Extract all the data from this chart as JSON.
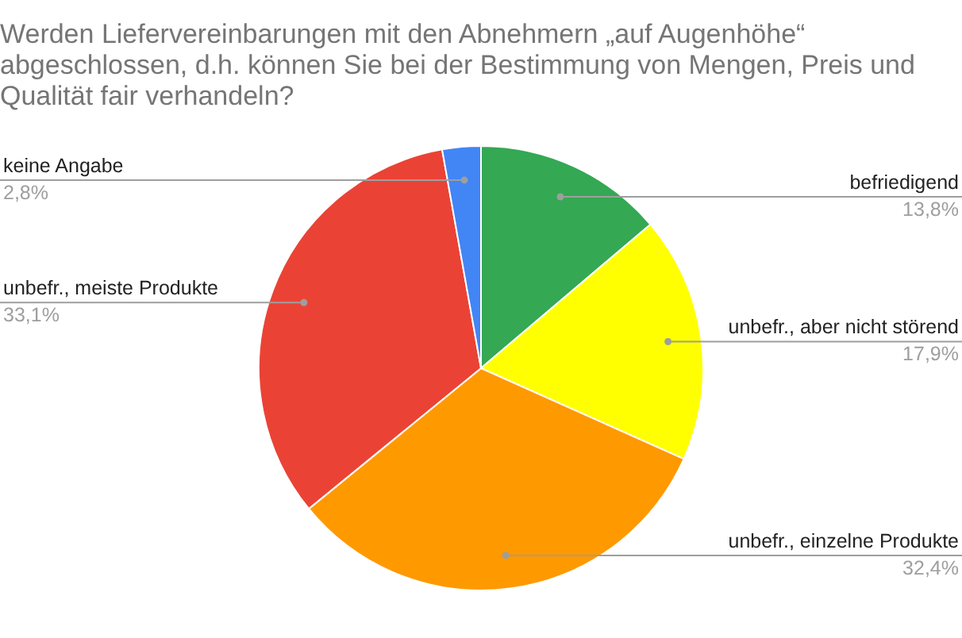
{
  "chart_data": {
    "type": "pie",
    "title": "Werden Liefervereinbarungen mit den Abnehmern „auf Augenhöhe“ abgeschlossen, d.h. können Sie bei der Bestimmung von Mengen, Preis und Qualität fair verhandeln?",
    "categories": [
      "befriedigend",
      "unbefr., aber nicht störend",
      "unbefr., einzelne Produkte",
      "unbefr., meiste Produkte",
      "keine Angabe"
    ],
    "values": [
      13.8,
      17.9,
      32.4,
      33.1,
      2.8
    ],
    "value_labels": [
      "13,8%",
      "17,9%",
      "32,4%",
      "33,1%",
      "2,8%"
    ],
    "colors": [
      "#34a853",
      "#ffff00",
      "#ff9900",
      "#ea4335",
      "#4285f4"
    ]
  }
}
